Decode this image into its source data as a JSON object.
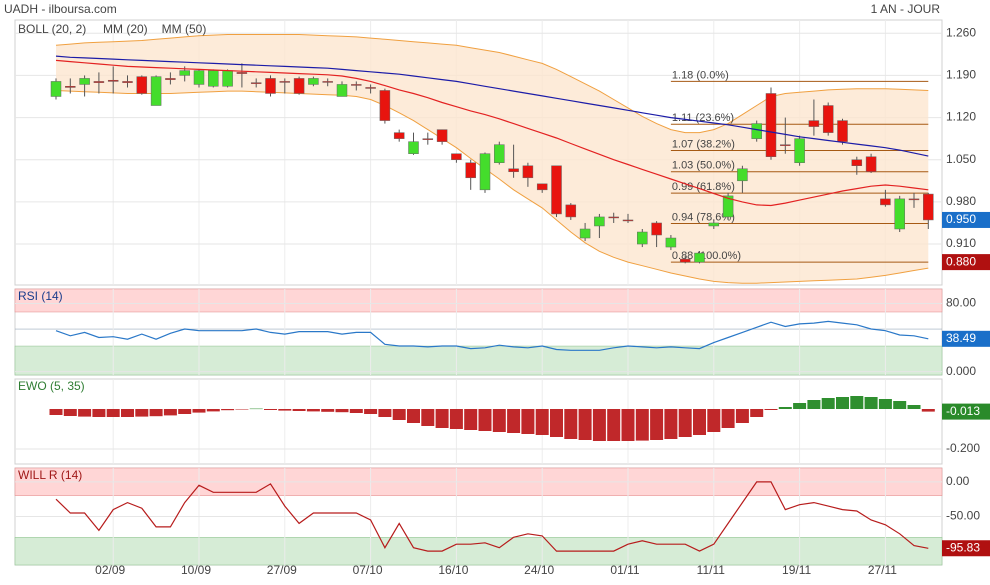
{
  "header": {
    "source": "UADH - ilboursa.com",
    "period": "1 AN - JOUR"
  },
  "chart_data": [
    {
      "type": "candlestick",
      "open": [
        1.155,
        1.172,
        1.175,
        1.18,
        1.182,
        1.18,
        1.188,
        1.14,
        1.185,
        1.19,
        1.175,
        1.172,
        1.172,
        1.195,
        1.178,
        1.185,
        1.18,
        1.185,
        1.175,
        1.18,
        1.155,
        1.175,
        1.17,
        1.165,
        1.095,
        1.06,
        1.085,
        1.1,
        1.06,
        1.045,
        1.0,
        1.045,
        1.035,
        1.04,
        1.01,
        1.04,
        0.975,
        0.92,
        0.94,
        0.955,
        0.95,
        0.91,
        0.945,
        0.905,
        0.885,
        0.88,
        0.94,
        0.955,
        1.015,
        1.085,
        1.16,
        1.075,
        1.045,
        1.115,
        1.14,
        1.115,
        1.05,
        1.055,
        0.985,
        0.935,
        0.985,
        0.993
      ],
      "high": [
        1.185,
        1.185,
        1.19,
        1.195,
        1.205,
        1.19,
        1.19,
        1.19,
        1.195,
        1.205,
        1.2,
        1.2,
        1.2,
        1.21,
        1.185,
        1.19,
        1.185,
        1.188,
        1.188,
        1.185,
        1.18,
        1.18,
        1.175,
        1.168,
        1.1,
        1.095,
        1.095,
        1.1,
        1.06,
        1.05,
        1.062,
        1.08,
        1.075,
        1.045,
        1.01,
        1.04,
        0.978,
        0.945,
        0.96,
        0.962,
        0.96,
        0.935,
        0.948,
        0.925,
        0.89,
        0.898,
        0.95,
        0.995,
        1.04,
        1.115,
        1.17,
        1.12,
        1.09,
        1.15,
        1.145,
        1.118,
        1.055,
        1.06,
        1.0,
        0.99,
        0.995,
        0.995
      ],
      "low": [
        1.15,
        1.16,
        1.155,
        1.16,
        1.16,
        1.17,
        1.158,
        1.14,
        1.175,
        1.18,
        1.17,
        1.17,
        1.17,
        1.17,
        1.17,
        1.155,
        1.16,
        1.158,
        1.172,
        1.172,
        1.155,
        1.165,
        1.16,
        1.11,
        1.08,
        1.058,
        1.075,
        1.075,
        1.045,
        1.0,
        0.995,
        1.042,
        1.02,
        1.005,
        0.995,
        0.955,
        0.95,
        0.915,
        0.92,
        0.945,
        0.945,
        0.905,
        0.905,
        0.9,
        0.878,
        0.878,
        0.935,
        0.95,
        0.995,
        1.08,
        1.05,
        1.06,
        1.04,
        1.09,
        1.09,
        1.075,
        1.025,
        1.028,
        0.972,
        0.93,
        0.97,
        0.935
      ],
      "close": [
        1.18,
        1.17,
        1.185,
        1.178,
        1.18,
        1.178,
        1.16,
        1.188,
        1.183,
        1.198,
        1.198,
        1.198,
        1.198,
        1.193,
        1.177,
        1.16,
        1.179,
        1.16,
        1.185,
        1.179,
        1.175,
        1.174,
        1.169,
        1.115,
        1.085,
        1.08,
        1.084,
        1.08,
        1.05,
        1.02,
        1.06,
        1.075,
        1.03,
        1.02,
        1.0,
        0.96,
        0.955,
        0.935,
        0.955,
        0.954,
        0.949,
        0.93,
        0.925,
        0.92,
        0.88,
        0.895,
        0.945,
        0.99,
        1.035,
        1.11,
        1.055,
        1.074,
        1.085,
        1.105,
        1.095,
        1.08,
        1.04,
        1.03,
        0.975,
        0.985,
        0.984,
        0.95
      ],
      "colors": {
        "up": "#44dd2c",
        "down": "#e8140f"
      },
      "band": {
        "name": "BOLL (20, 2)",
        "color": "#f0a040",
        "fill": "#fde6cf",
        "upper": [
          1.24,
          1.242,
          1.244,
          1.245,
          1.246,
          1.247,
          1.248,
          1.25,
          1.252,
          1.254,
          1.256,
          1.257,
          1.258,
          1.258,
          1.258,
          1.258,
          1.258,
          1.258,
          1.257,
          1.256,
          1.255,
          1.254,
          1.252,
          1.25,
          1.248,
          1.246,
          1.244,
          1.242,
          1.24,
          1.236,
          1.232,
          1.228,
          1.222,
          1.216,
          1.21,
          1.2,
          1.188,
          1.176,
          1.164,
          1.15,
          1.136,
          1.122,
          1.11,
          1.1,
          1.095,
          1.095,
          1.1,
          1.11,
          1.125,
          1.14,
          1.155,
          1.16,
          1.162,
          1.164,
          1.166,
          1.167,
          1.168,
          1.168,
          1.168,
          1.167,
          1.166,
          1.165
        ],
        "lower": [
          1.165,
          1.164,
          1.163,
          1.162,
          1.161,
          1.16,
          1.16,
          1.16,
          1.16,
          1.161,
          1.162,
          1.163,
          1.164,
          1.164,
          1.163,
          1.162,
          1.161,
          1.16,
          1.159,
          1.158,
          1.157,
          1.155,
          1.15,
          1.14,
          1.128,
          1.115,
          1.1,
          1.085,
          1.07,
          1.052,
          1.035,
          1.018,
          1.0,
          0.985,
          0.97,
          0.95,
          0.93,
          0.912,
          0.898,
          0.888,
          0.88,
          0.874,
          0.868,
          0.862,
          0.857,
          0.852,
          0.848,
          0.846,
          0.845,
          0.845,
          0.846,
          0.847,
          0.848,
          0.849,
          0.85,
          0.851,
          0.852,
          0.855,
          0.858,
          0.862,
          0.866,
          0.87
        ]
      },
      "series": [
        {
          "name": "MM (20)",
          "color": "#e32222",
          "values": [
            1.215,
            1.213,
            1.211,
            1.209,
            1.207,
            1.205,
            1.204,
            1.203,
            1.202,
            1.201,
            1.2,
            1.199,
            1.198,
            1.197,
            1.196,
            1.195,
            1.194,
            1.193,
            1.192,
            1.191,
            1.189,
            1.185,
            1.18,
            1.173,
            1.166,
            1.16,
            1.153,
            1.145,
            1.138,
            1.131,
            1.125,
            1.118,
            1.11,
            1.102,
            1.094,
            1.086,
            1.077,
            1.068,
            1.059,
            1.05,
            1.042,
            1.034,
            1.026,
            1.018,
            1.01,
            1.002,
            0.994,
            0.986,
            0.98,
            0.975,
            0.974,
            0.978,
            0.983,
            0.988,
            0.993,
            0.998,
            1.002,
            1.006,
            1.008,
            1.006,
            1.003,
            1.0
          ]
        },
        {
          "name": "MM (50)",
          "color": "#1c1ca8",
          "values": [
            1.222,
            1.22,
            1.219,
            1.218,
            1.217,
            1.216,
            1.215,
            1.214,
            1.213,
            1.212,
            1.211,
            1.21,
            1.209,
            1.208,
            1.207,
            1.206,
            1.205,
            1.204,
            1.203,
            1.202,
            1.2,
            1.198,
            1.196,
            1.194,
            1.192,
            1.189,
            1.186,
            1.183,
            1.18,
            1.176,
            1.172,
            1.168,
            1.164,
            1.16,
            1.156,
            1.152,
            1.148,
            1.144,
            1.14,
            1.136,
            1.132,
            1.128,
            1.124,
            1.12,
            1.117,
            1.114,
            1.111,
            1.108,
            1.104,
            1.1,
            1.096,
            1.092,
            1.088,
            1.085,
            1.082,
            1.079,
            1.076,
            1.073,
            1.07,
            1.066,
            1.061,
            1.056
          ]
        }
      ],
      "fib_levels": [
        {
          "value": 1.18,
          "label": "1.18 (0.0%)"
        },
        {
          "value": 1.109,
          "label": "1.11 (23.6%)"
        },
        {
          "value": 1.0654,
          "label": "1.07 (38.2%)"
        },
        {
          "value": 1.03,
          "label": "1.03 (50.0%)"
        },
        {
          "value": 0.9946,
          "label": "0.99 (61.8%)"
        },
        {
          "value": 0.9442,
          "label": "0.94 (78.6%)"
        },
        {
          "value": 0.88,
          "label": "0.88 (100.0%)"
        }
      ],
      "fib_color": "#a65a14",
      "ylim": [
        0.842,
        1.282
      ],
      "yticks": [
        {
          "value": 1.26,
          "label": "1.260"
        },
        {
          "value": 1.19,
          "label": "1.190"
        },
        {
          "value": 1.12,
          "label": "1.120"
        },
        {
          "value": 1.05,
          "label": "1.050"
        },
        {
          "value": 0.98,
          "label": "0.980"
        },
        {
          "value": 0.91,
          "label": "0.910"
        }
      ],
      "markers": [
        {
          "value": 0.95,
          "label": "0.950",
          "color": "#1a6fc9"
        },
        {
          "value": 0.88,
          "label": "0.880",
          "color": "#b01010"
        }
      ],
      "grid": true
    },
    {
      "type": "line",
      "title": "RSI (14)",
      "title_color": "#1a3c8c",
      "color": "#2a78c8",
      "values": [
        48,
        42,
        46,
        40,
        41,
        38,
        44,
        38,
        45,
        50,
        48,
        48,
        48,
        48,
        50,
        46,
        44,
        47,
        47,
        47,
        44,
        46,
        46,
        32,
        30,
        30,
        29,
        30,
        30,
        27,
        28,
        31,
        29,
        28,
        30,
        26,
        25,
        25,
        25,
        28,
        30,
        29,
        28,
        29,
        28,
        27,
        34,
        40,
        46,
        52,
        58,
        53,
        56,
        57,
        59,
        57,
        55,
        50,
        48,
        43,
        42,
        38.49
      ],
      "overbought": 70,
      "oversold": 30,
      "midline": 50,
      "overbought_color": "#ffd6d6",
      "oversold_color": "#d6ecd6",
      "ylim": [
        -4,
        97
      ],
      "yticks": [
        {
          "value": 80,
          "label": "80.00"
        },
        {
          "value": 0,
          "label": "0.000"
        }
      ],
      "markers": [
        {
          "value": 38.49,
          "label": "38.49",
          "color": "#1a6fc9"
        }
      ],
      "grid": true
    },
    {
      "type": "bar",
      "title": "EWO (5, 35)",
      "title_color": "#2e7d32",
      "colors": {
        "positive": "#2f8f2f",
        "negative": "#c0282a"
      },
      "values": [
        -0.03,
        -0.035,
        -0.038,
        -0.04,
        -0.04,
        -0.04,
        -0.038,
        -0.036,
        -0.032,
        -0.025,
        -0.018,
        -0.012,
        -0.006,
        -0.002,
        0.002,
        -0.005,
        -0.008,
        -0.01,
        -0.012,
        -0.014,
        -0.016,
        -0.02,
        -0.025,
        -0.04,
        -0.055,
        -0.07,
        -0.085,
        -0.095,
        -0.1,
        -0.105,
        -0.11,
        -0.115,
        -0.12,
        -0.125,
        -0.13,
        -0.14,
        -0.15,
        -0.155,
        -0.16,
        -0.16,
        -0.16,
        -0.158,
        -0.155,
        -0.15,
        -0.14,
        -0.13,
        -0.115,
        -0.095,
        -0.07,
        -0.04,
        -0.005,
        0.01,
        0.03,
        0.045,
        0.055,
        0.06,
        0.065,
        0.06,
        0.05,
        0.04,
        0.02,
        -0.013
      ],
      "ylim": [
        -0.275,
        0.15
      ],
      "yticks": [
        {
          "value": -0.2,
          "label": "-0.200"
        }
      ],
      "markers": [
        {
          "value": -0.013,
          "label": "-0.013",
          "color": "#2a8a2a"
        }
      ],
      "grid": true
    },
    {
      "type": "line",
      "title": "WILL R (14)",
      "title_color": "#a01818",
      "color": "#b71c1c",
      "values": [
        -25,
        -45,
        -45,
        -70,
        -40,
        -30,
        -38,
        -65,
        -65,
        -30,
        -5,
        -15,
        -15,
        -15,
        -15,
        -3,
        -35,
        -60,
        -45,
        -45,
        -45,
        -45,
        -55,
        -95,
        -60,
        -95,
        -100,
        -100,
        -90,
        -90,
        -88,
        -95,
        -80,
        -75,
        -78,
        -100,
        -100,
        -100,
        -100,
        -100,
        -90,
        -85,
        -90,
        -90,
        -90,
        -100,
        -90,
        -60,
        -30,
        0,
        0,
        -40,
        -33,
        -30,
        -35,
        -40,
        -42,
        -55,
        -62,
        -75,
        -92,
        -95.83
      ],
      "overbought": -20,
      "oversold": -80,
      "overbought_color": "#ffd6d6",
      "oversold_color": "#d6ecd6",
      "ylim": [
        -120,
        20
      ],
      "yticks": [
        {
          "value": 0,
          "label": "0.00"
        },
        {
          "value": -50,
          "label": "-50.00"
        }
      ],
      "markers": [
        {
          "value": -95.83,
          "label": "-95.83",
          "color": "#b01010"
        }
      ],
      "categories": [
        null,
        null,
        null,
        null,
        "02/09",
        null,
        null,
        null,
        null,
        null,
        "10/09",
        null,
        null,
        null,
        null,
        null,
        "27/09",
        null,
        null,
        null,
        null,
        null,
        "07/10",
        null,
        null,
        null,
        null,
        null,
        "16/10",
        null,
        null,
        null,
        null,
        null,
        "24/10",
        null,
        null,
        null,
        null,
        null,
        "01/11",
        null,
        null,
        null,
        null,
        null,
        "11/11",
        null,
        null,
        null,
        null,
        null,
        "19/11",
        null,
        null,
        null,
        null,
        null,
        "27/11",
        null,
        null,
        null
      ],
      "grid": true
    }
  ]
}
